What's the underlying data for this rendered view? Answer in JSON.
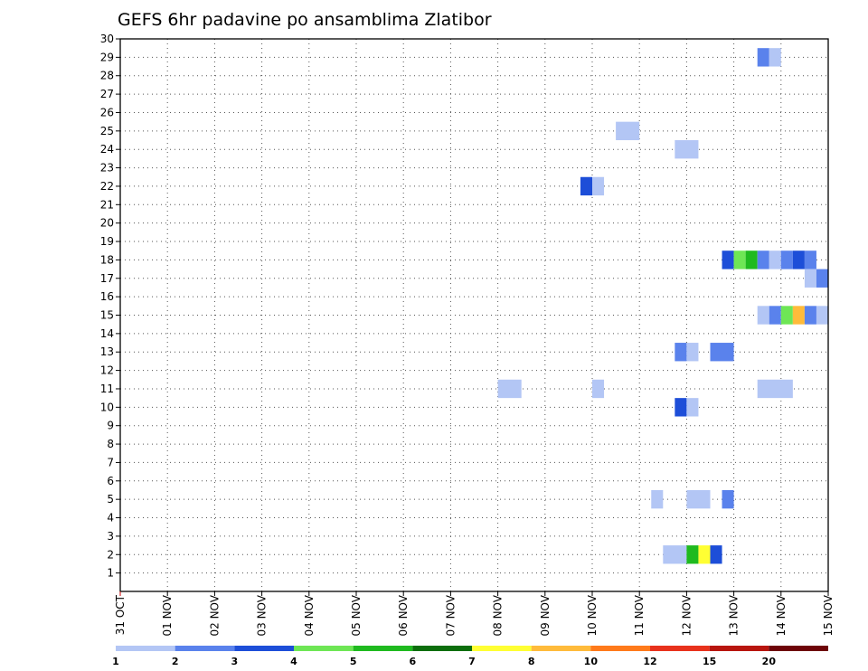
{
  "chart_data": {
    "type": "heatmap",
    "title": "GEFS 6hr padavine po ansamblima Zlatibor",
    "x_tick_labels": [
      "31 OCT",
      "01 NOV",
      "02 NOV",
      "03 NOV",
      "04 NOV",
      "05 NOV",
      "06 NOV",
      "07 NOV",
      "08 NOV",
      "09 NOV",
      "10 NOV",
      "11 NOV",
      "12 NOV",
      "13 NOV",
      "14 NOV",
      "15 NOV"
    ],
    "xlim": [
      0,
      15
    ],
    "y_tick_labels": [
      "1",
      "2",
      "3",
      "4",
      "5",
      "6",
      "7",
      "8",
      "9",
      "10",
      "11",
      "12",
      "13",
      "14",
      "15",
      "16",
      "17",
      "18",
      "19",
      "20",
      "21",
      "22",
      "23",
      "24",
      "25",
      "26",
      "27",
      "28",
      "29",
      "30"
    ],
    "ylim": [
      0,
      30
    ],
    "grid": true,
    "legend": {
      "placement": "bottom",
      "labels": [
        "1",
        "2",
        "3",
        "4",
        "5",
        "6",
        "7",
        "8",
        "10",
        "12",
        "15",
        "20"
      ],
      "colors": [
        "#b3c6f5",
        "#5a82ec",
        "#1d4ed8",
        "#6ee655",
        "#1fba1f",
        "#0c6e0c",
        "#ffff33",
        "#ffbb3b",
        "#ff7a1a",
        "#e8321c",
        "#b8150e",
        "#6e0408"
      ]
    },
    "cells": [
      {
        "member": 29,
        "day": 13.5,
        "days": 0.25,
        "value": 2
      },
      {
        "member": 29,
        "day": 13.75,
        "days": 0.25,
        "value": 1
      },
      {
        "member": 25,
        "day": 10.5,
        "days": 0.5,
        "value": 1
      },
      {
        "member": 24,
        "day": 11.75,
        "days": 0.5,
        "value": 1
      },
      {
        "member": 22,
        "day": 9.75,
        "days": 0.25,
        "value": 3
      },
      {
        "member": 22,
        "day": 10.0,
        "days": 0.25,
        "value": 1
      },
      {
        "member": 18,
        "day": 12.75,
        "days": 0.25,
        "value": 3
      },
      {
        "member": 18,
        "day": 13.0,
        "days": 0.25,
        "value": 4
      },
      {
        "member": 18,
        "day": 13.25,
        "days": 0.25,
        "value": 5
      },
      {
        "member": 18,
        "day": 13.5,
        "days": 0.25,
        "value": 2
      },
      {
        "member": 18,
        "day": 13.75,
        "days": 0.25,
        "value": 1
      },
      {
        "member": 18,
        "day": 14.0,
        "days": 0.25,
        "value": 2
      },
      {
        "member": 18,
        "day": 14.25,
        "days": 0.25,
        "value": 3
      },
      {
        "member": 18,
        "day": 14.5,
        "days": 0.25,
        "value": 2
      },
      {
        "member": 17,
        "day": 14.5,
        "days": 0.25,
        "value": 1
      },
      {
        "member": 17,
        "day": 14.75,
        "days": 0.25,
        "value": 2
      },
      {
        "member": 15,
        "day": 13.5,
        "days": 0.25,
        "value": 1
      },
      {
        "member": 15,
        "day": 13.75,
        "days": 0.25,
        "value": 2
      },
      {
        "member": 15,
        "day": 14.0,
        "days": 0.25,
        "value": 4
      },
      {
        "member": 15,
        "day": 14.25,
        "days": 0.25,
        "value": 8
      },
      {
        "member": 15,
        "day": 14.5,
        "days": 0.25,
        "value": 2
      },
      {
        "member": 15,
        "day": 14.75,
        "days": 0.25,
        "value": 1
      },
      {
        "member": 13,
        "day": 11.75,
        "days": 0.25,
        "value": 2
      },
      {
        "member": 13,
        "day": 12.0,
        "days": 0.25,
        "value": 1
      },
      {
        "member": 13,
        "day": 12.5,
        "days": 0.5,
        "value": 2
      },
      {
        "member": 11,
        "day": 8.0,
        "days": 0.5,
        "value": 1
      },
      {
        "member": 11,
        "day": 10.0,
        "days": 0.25,
        "value": 1
      },
      {
        "member": 11,
        "day": 13.5,
        "days": 0.75,
        "value": 1
      },
      {
        "member": 10,
        "day": 11.75,
        "days": 0.25,
        "value": 3
      },
      {
        "member": 10,
        "day": 12.0,
        "days": 0.25,
        "value": 1
      },
      {
        "member": 5,
        "day": 11.25,
        "days": 0.25,
        "value": 1
      },
      {
        "member": 5,
        "day": 12.0,
        "days": 0.5,
        "value": 1
      },
      {
        "member": 5,
        "day": 12.75,
        "days": 0.25,
        "value": 2
      },
      {
        "member": 2,
        "day": 11.5,
        "days": 0.5,
        "value": 1
      },
      {
        "member": 2,
        "day": 12.0,
        "days": 0.25,
        "value": 5
      },
      {
        "member": 2,
        "day": 12.25,
        "days": 0.25,
        "value": 7
      },
      {
        "member": 2,
        "day": 12.5,
        "days": 0.25,
        "value": 3
      }
    ]
  }
}
